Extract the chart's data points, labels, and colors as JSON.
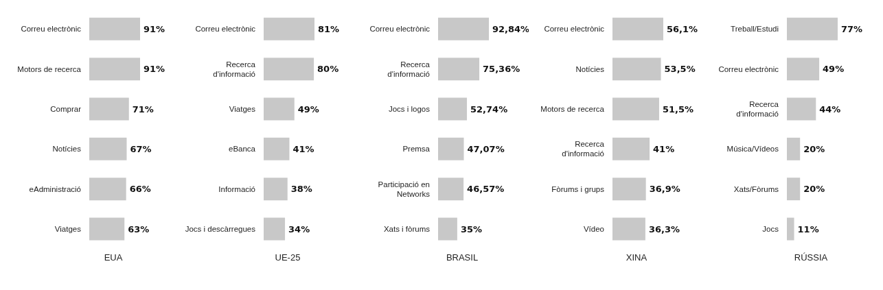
{
  "chart_data": [
    {
      "type": "bar",
      "orientation": "horizontal",
      "xlabel": "EUA",
      "categories": [
        "Correu electrònic",
        "Motors de recerca",
        "Comprar",
        "Notícies",
        "eAdministració",
        "Viatges"
      ],
      "values": [
        91,
        91,
        71,
        67,
        66,
        63
      ],
      "color": "#c8c8c8",
      "value_labels": [
        "91%",
        "91%",
        "71%",
        "67%",
        "66%",
        "63%"
      ]
    },
    {
      "type": "bar",
      "orientation": "horizontal",
      "xlabel": "UE-25",
      "categories": [
        "Correu electrònic",
        "Recerca d'informació",
        "Viatges",
        "eBanca",
        "Informació",
        "Jocs i descàrregues"
      ],
      "values": [
        81,
        80,
        49,
        41,
        38,
        34
      ],
      "color": "#c8c8c8",
      "value_labels": [
        "81%",
        "80%",
        "49%",
        "41%",
        "38%",
        "34%"
      ]
    },
    {
      "type": "bar",
      "orientation": "horizontal",
      "xlabel": "BRASIL",
      "categories": [
        "Correu electrònic",
        "Recerca d'informació",
        "Jocs i logos",
        "Premsa",
        "Participació en Networks",
        "Xats i fòrums"
      ],
      "values": [
        92.84,
        75.36,
        52.74,
        47.07,
        46.57,
        35
      ],
      "color": "#c8c8c8",
      "value_labels": [
        "92,84%",
        "75,36%",
        "52,74%",
        "47,07%",
        "46,57%",
        "35%"
      ]
    },
    {
      "type": "bar",
      "orientation": "horizontal",
      "xlabel": "XINA",
      "categories": [
        "Correu electrònic",
        "Notícies",
        "Motors de recerca",
        "Recerca d'informació",
        "Fòrums i grups",
        "Vídeo"
      ],
      "values": [
        56.1,
        53.5,
        51.5,
        41,
        36.9,
        36.3
      ],
      "color": "#c8c8c8",
      "value_labels": [
        "56,1%",
        "53,5%",
        "51,5%",
        "41%",
        "36,9%",
        "36,3%"
      ]
    },
    {
      "type": "bar",
      "orientation": "horizontal",
      "xlabel": "RÚSSIA",
      "categories": [
        "Treball/Estudi",
        "Correu electrònic",
        "Recerca d'informació",
        "Música/Vídeos",
        "Xats/Fòrums",
        "Jocs"
      ],
      "values": [
        77,
        49,
        44,
        20,
        20,
        11
      ],
      "color": "#c8c8c8",
      "value_labels": [
        "77%",
        "49%",
        "44%",
        "20%",
        "20%",
        "11%"
      ]
    }
  ]
}
